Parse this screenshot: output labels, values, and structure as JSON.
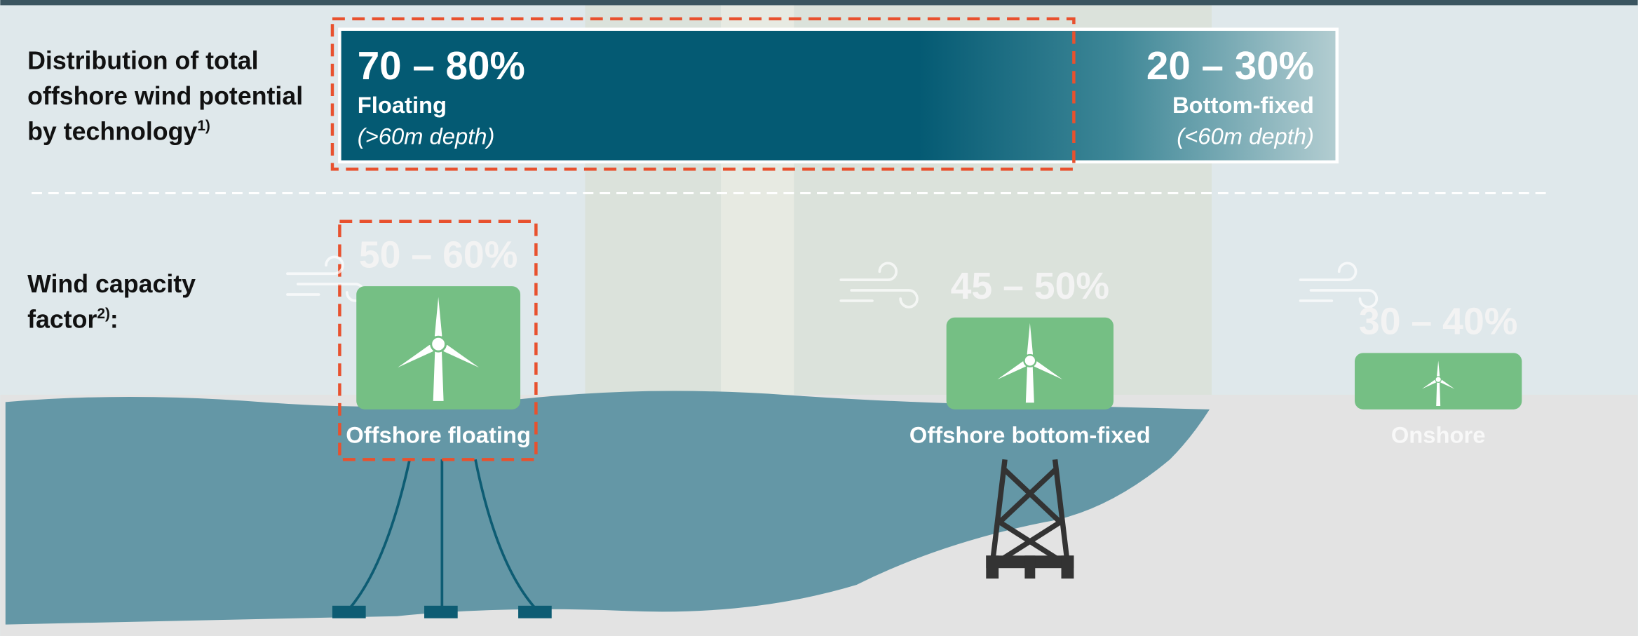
{
  "distribution": {
    "label_lines": [
      "Distribution of total",
      "offshore wind potential",
      "by technology"
    ],
    "footnote": "1)",
    "segments": [
      {
        "share": "70 – 80%",
        "technology": "Floating",
        "depth": "(>60m depth)"
      },
      {
        "share": "20 – 30%",
        "technology": "Bottom-fixed",
        "depth": "(<60m depth)"
      }
    ]
  },
  "capacity": {
    "label_lines": [
      "Wind capacity",
      "factor"
    ],
    "footnote": "2)",
    "suffix": ":",
    "items": [
      {
        "value": "50 – 60%",
        "name": "Offshore floating"
      },
      {
        "value": "45 – 50%",
        "name": "Offshore bottom-fixed"
      },
      {
        "value": "30 – 40%",
        "name": "Onshore"
      }
    ]
  }
}
